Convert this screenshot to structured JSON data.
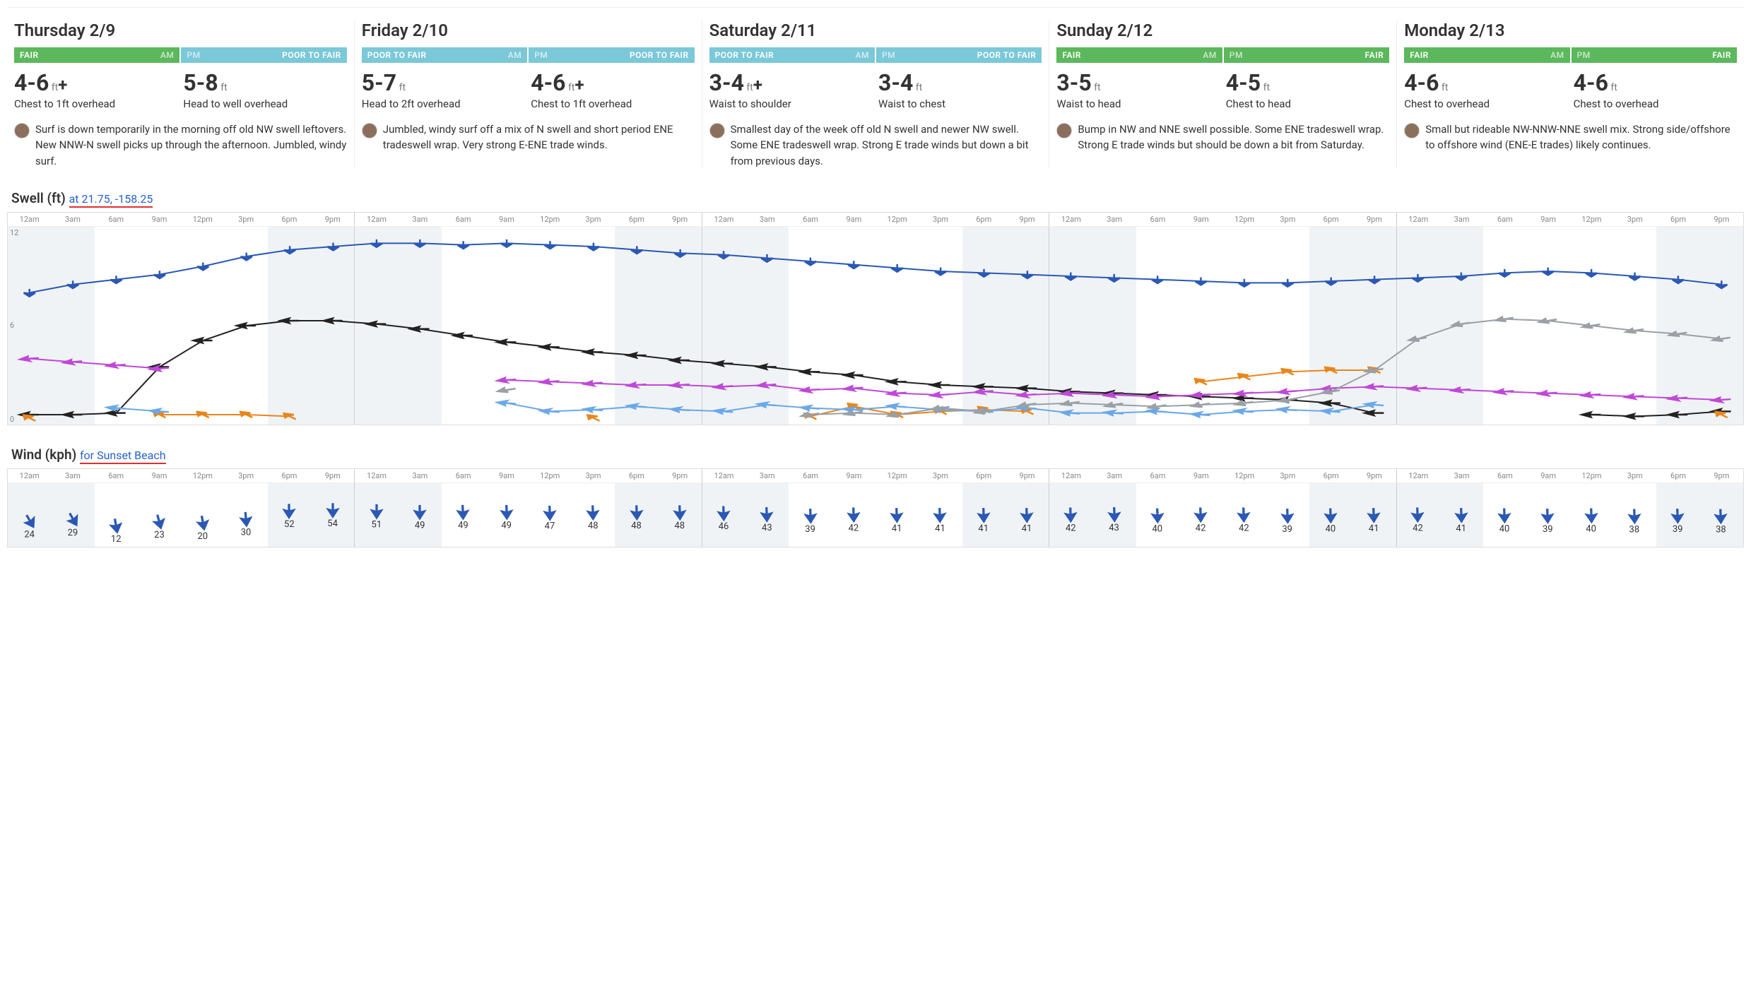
{
  "colors": {
    "fair": "#5cb85c",
    "poor_to_fair": "#7bc8d8",
    "text": "#333333",
    "subtitle": "#2563c9",
    "night_stripe": "#f0f3f6"
  },
  "days": [
    {
      "title": "Thursday 2/9",
      "am": {
        "rating": "FAIR",
        "color": "#5cb85c",
        "height": "4-6",
        "plus": "+",
        "desc": "Chest to 1ft overhead"
      },
      "pm": {
        "rating": "POOR TO FAIR",
        "color": "#7bc8d8",
        "height": "5-8",
        "plus": "",
        "desc": "Head to well overhead"
      },
      "summary": "Surf is down temporarily in the morning off old NW swell leftovers. New NNW-N swell picks up through the afternoon. Jumbled, windy surf."
    },
    {
      "title": "Friday 2/10",
      "am": {
        "rating": "POOR TO FAIR",
        "color": "#7bc8d8",
        "height": "5-7",
        "plus": "",
        "desc": "Head to 2ft overhead"
      },
      "pm": {
        "rating": "POOR TO FAIR",
        "color": "#7bc8d8",
        "height": "4-6",
        "plus": "+",
        "desc": "Chest to 1ft overhead"
      },
      "summary": "Jumbled, windy surf off a mix of N swell and short period ENE tradeswell wrap. Very strong E-ENE trade winds."
    },
    {
      "title": "Saturday 2/11",
      "am": {
        "rating": "POOR TO FAIR",
        "color": "#7bc8d8",
        "height": "3-4",
        "plus": "+",
        "desc": "Waist to shoulder"
      },
      "pm": {
        "rating": "POOR TO FAIR",
        "color": "#7bc8d8",
        "height": "3-4",
        "plus": "",
        "desc": "Waist to chest"
      },
      "summary": "Smallest day of the week off old N swell and newer NW swell. Some ENE tradeswell wrap. Strong E trade winds but down a bit from previous days."
    },
    {
      "title": "Sunday 2/12",
      "am": {
        "rating": "FAIR",
        "color": "#5cb85c",
        "height": "3-5",
        "plus": "",
        "desc": "Waist to head"
      },
      "pm": {
        "rating": "FAIR",
        "color": "#5cb85c",
        "height": "4-5",
        "plus": "",
        "desc": "Chest to head"
      },
      "summary": "Bump in NW and NNE swell possible. Some ENE tradeswell wrap. Strong E trade winds but should be down a bit from Saturday."
    },
    {
      "title": "Monday 2/13",
      "am": {
        "rating": "FAIR",
        "color": "#5cb85c",
        "height": "4-6",
        "plus": "",
        "desc": "Chest to overhead"
      },
      "pm": {
        "rating": "FAIR",
        "color": "#5cb85c",
        "height": "4-6",
        "plus": "",
        "desc": "Chest to overhead"
      },
      "summary": "Small but rideable NW-NNW-NNE swell mix. Strong side/offshore to offshore wind (ENE-E trades) likely continues."
    }
  ],
  "swell_chart": {
    "title": "Swell (ft)",
    "subtitle": "at 21.75, -158.25",
    "ylim": [
      0,
      12
    ],
    "yticks": [
      0,
      6,
      12
    ],
    "time_labels": [
      "12am",
      "3am",
      "6am",
      "9am",
      "12pm",
      "3pm",
      "6pm",
      "9pm"
    ],
    "night_indices": [
      0,
      1,
      6,
      7
    ],
    "series": [
      {
        "name": "swell-total",
        "color": "#2a58b5",
        "arrow_rotation": 90,
        "values": [
          8.0,
          8.5,
          8.8,
          9.1,
          9.6,
          10.2,
          10.6,
          10.8,
          11.0,
          11.0,
          10.9,
          11.0,
          10.9,
          10.8,
          10.6,
          10.4,
          10.3,
          10.1,
          9.9,
          9.7,
          9.5,
          9.3,
          9.2,
          9.1,
          9.0,
          8.9,
          8.8,
          8.7,
          8.6,
          8.6,
          8.7,
          8.8,
          8.9,
          9.0,
          9.2,
          9.3,
          9.2,
          9.0,
          8.8,
          8.5
        ]
      },
      {
        "name": "swell-primary",
        "color": "#222222",
        "arrow_rotation": 180,
        "values": [
          0.6,
          0.6,
          0.7,
          3.5,
          5.1,
          6.0,
          6.3,
          6.3,
          6.1,
          5.8,
          5.4,
          5.0,
          4.7,
          4.4,
          4.2,
          3.9,
          3.7,
          3.5,
          3.2,
          3.0,
          2.6,
          2.4,
          2.3,
          2.2,
          2.0,
          1.9,
          1.8,
          1.7,
          1.6,
          1.5,
          1.3,
          0.7,
          null,
          null,
          null,
          null,
          0.6,
          0.5,
          0.6,
          0.8
        ]
      },
      {
        "name": "swell-secondary",
        "color": "#c048d8",
        "arrow_rotation": 170,
        "values": [
          4.0,
          3.8,
          3.6,
          3.4,
          null,
          null,
          null,
          null,
          null,
          null,
          null,
          2.7,
          2.6,
          2.5,
          2.4,
          2.4,
          2.3,
          2.4,
          2.1,
          2.2,
          1.9,
          1.8,
          2.0,
          1.8,
          1.9,
          1.8,
          1.7,
          1.8,
          1.9,
          2.0,
          2.2,
          2.3,
          2.2,
          2.1,
          2.0,
          1.9,
          1.8,
          1.7,
          1.6,
          1.5
        ]
      },
      {
        "name": "swell-tertiary",
        "color": "#e8861c",
        "arrow_rotation": 230,
        "values": [
          0.4,
          null,
          null,
          0.6,
          0.6,
          0.6,
          0.5,
          null,
          null,
          null,
          null,
          null,
          null,
          0.4,
          null,
          null,
          null,
          null,
          0.5,
          1.1,
          0.6,
          0.8,
          0.9,
          0.8,
          null,
          null,
          null,
          2.6,
          2.9,
          3.2,
          3.3,
          3.3,
          null,
          null,
          null,
          null,
          null,
          null,
          null,
          0.6
        ]
      },
      {
        "name": "swell-quaternary",
        "color": "#6aa8e8",
        "arrow_rotation": 190,
        "values": [
          null,
          null,
          1.0,
          0.8,
          null,
          null,
          null,
          null,
          null,
          null,
          null,
          1.3,
          0.8,
          0.9,
          1.1,
          0.9,
          0.8,
          1.2,
          1.0,
          0.9,
          1.1,
          0.9,
          0.8,
          1.0,
          0.7,
          0.7,
          0.8,
          0.6,
          0.8,
          0.9,
          0.8,
          1.2,
          null,
          null,
          null,
          null,
          null,
          null,
          null,
          null
        ]
      },
      {
        "name": "swell-quinary",
        "color": "#9aa0a6",
        "arrow_rotation": 160,
        "values": [
          null,
          null,
          null,
          null,
          null,
          null,
          null,
          null,
          null,
          null,
          null,
          2.1,
          null,
          null,
          null,
          null,
          null,
          null,
          0.6,
          0.7,
          0.6,
          1.0,
          0.8,
          1.2,
          1.3,
          1.2,
          1.1,
          1.2,
          1.3,
          1.5,
          2.0,
          3.3,
          5.2,
          6.1,
          6.4,
          6.3,
          6.0,
          5.7,
          5.5,
          5.2
        ]
      }
    ]
  },
  "wind_chart": {
    "title": "Wind (kph)",
    "subtitle": "for Sunset Beach",
    "time_labels": [
      "12am",
      "3am",
      "6am",
      "9am",
      "12pm",
      "3pm",
      "6pm",
      "9pm"
    ],
    "night_indices": [
      0,
      1,
      6,
      7
    ],
    "arrow_color": "#2a58b5",
    "max_offset": 22,
    "cells": [
      [
        {
          "v": 24,
          "r": 60
        },
        {
          "v": 29,
          "r": 60
        },
        {
          "v": 12,
          "r": 80
        },
        {
          "v": 23,
          "r": 75
        },
        {
          "v": 20,
          "r": 80
        },
        {
          "v": 30,
          "r": 85
        },
        {
          "v": 52,
          "r": 90
        },
        {
          "v": 54,
          "r": 90
        }
      ],
      [
        {
          "v": 51,
          "r": 90
        },
        {
          "v": 49,
          "r": 90
        },
        {
          "v": 49,
          "r": 88
        },
        {
          "v": 49,
          "r": 88
        },
        {
          "v": 47,
          "r": 88
        },
        {
          "v": 48,
          "r": 88
        },
        {
          "v": 48,
          "r": 88
        },
        {
          "v": 48,
          "r": 88
        }
      ],
      [
        {
          "v": 46,
          "r": 88
        },
        {
          "v": 43,
          "r": 88
        },
        {
          "v": 39,
          "r": 88
        },
        {
          "v": 42,
          "r": 88
        },
        {
          "v": 41,
          "r": 88
        },
        {
          "v": 41,
          "r": 88
        },
        {
          "v": 41,
          "r": 88
        },
        {
          "v": 41,
          "r": 88
        }
      ],
      [
        {
          "v": 42,
          "r": 88
        },
        {
          "v": 43,
          "r": 88
        },
        {
          "v": 40,
          "r": 88
        },
        {
          "v": 42,
          "r": 88
        },
        {
          "v": 42,
          "r": 88
        },
        {
          "v": 39,
          "r": 88
        },
        {
          "v": 40,
          "r": 88
        },
        {
          "v": 41,
          "r": 88
        }
      ],
      [
        {
          "v": 42,
          "r": 88
        },
        {
          "v": 41,
          "r": 88
        },
        {
          "v": 40,
          "r": 88
        },
        {
          "v": 39,
          "r": 88
        },
        {
          "v": 40,
          "r": 88
        },
        {
          "v": 38,
          "r": 88
        },
        {
          "v": 39,
          "r": 88
        },
        {
          "v": 38,
          "r": 88
        }
      ]
    ]
  }
}
